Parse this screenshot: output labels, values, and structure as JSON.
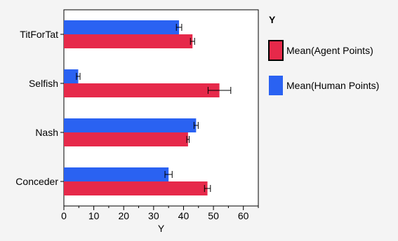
{
  "chart_data": {
    "type": "bar",
    "orientation": "horizontal",
    "categories": [
      "TitForTat",
      "Selfish",
      "Nash",
      "Conceder"
    ],
    "series": [
      {
        "name": "Mean(Human Points)",
        "color": "#2a62f2",
        "values": [
          38.5,
          4.8,
          44.2,
          35.0
        ],
        "error": [
          0.9,
          0.6,
          0.7,
          1.2
        ]
      },
      {
        "name": "Mean(Agent Points)",
        "color": "#e6294a",
        "values": [
          43.0,
          52.0,
          41.5,
          48.0
        ],
        "error": [
          0.7,
          3.8,
          0.4,
          1.0
        ]
      }
    ],
    "xlabel": "Y",
    "ylabel": "",
    "xlim": [
      0,
      65
    ],
    "xticks": [
      0,
      10,
      20,
      30,
      40,
      50,
      60
    ],
    "grid": false,
    "legend": {
      "title": "Y",
      "placement": "right",
      "entries": [
        "Mean(Agent Points)",
        "Mean(Human Points)"
      ],
      "colors": [
        "#e6294a",
        "#2a62f2"
      ],
      "highlighted": "Mean(Agent Points)"
    }
  }
}
